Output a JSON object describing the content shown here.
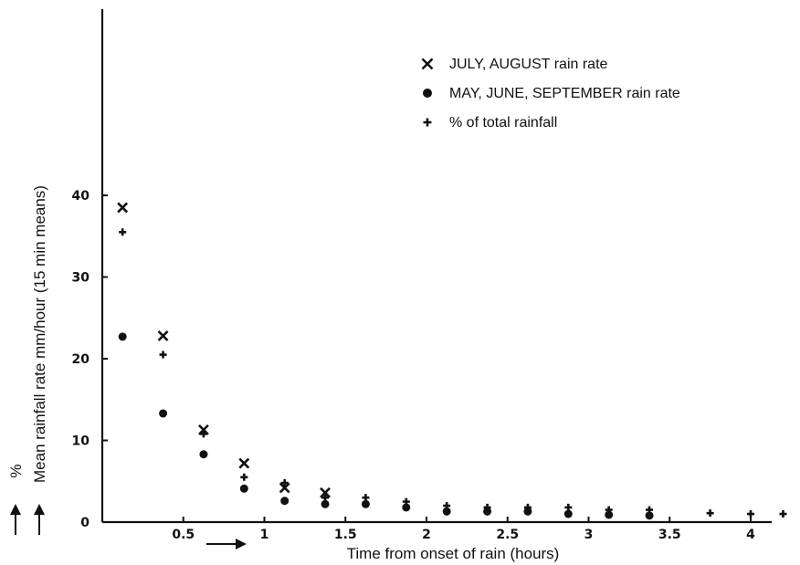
{
  "chart_data": {
    "type": "scatter",
    "title": "",
    "xlabel": "Time from onset of rain (hours)",
    "ylabel": "Mean rainfall rate mm/hour (15 min means)",
    "ylabel_secondary": "%",
    "xlim": [
      0,
      4.3
    ],
    "ylim": [
      0,
      45
    ],
    "xticks": [
      {
        "value": 0.5,
        "label": "0.5"
      },
      {
        "value": 1,
        "label": "1"
      },
      {
        "value": 1.5,
        "label": "1.5"
      },
      {
        "value": 2,
        "label": "2"
      },
      {
        "value": 2.5,
        "label": "2.5"
      },
      {
        "value": 3,
        "label": "3"
      },
      {
        "value": 3.5,
        "label": "3.5"
      },
      {
        "value": 4,
        "label": "4"
      }
    ],
    "yticks": [
      {
        "value": 0,
        "label": "0"
      },
      {
        "value": 10,
        "label": "10"
      },
      {
        "value": 20,
        "label": "20"
      },
      {
        "value": 30,
        "label": "30"
      },
      {
        "value": 40,
        "label": "40"
      }
    ],
    "legend_position": "top-right",
    "grid": false,
    "series": [
      {
        "name": "JULY, AUGUST rain rate",
        "marker": "x",
        "x": [
          0.125,
          0.375,
          0.625,
          0.875,
          1.125,
          1.375
        ],
        "y": [
          38.5,
          22.8,
          11.3,
          7.2,
          4.2,
          3.6
        ]
      },
      {
        "name": "MAY, JUNE, SEPTEMBER rain rate",
        "marker": "circle",
        "x": [
          0.125,
          0.375,
          0.625,
          0.875,
          1.125,
          1.375,
          1.625,
          1.875,
          2.125,
          2.375,
          2.625,
          2.875,
          3.125,
          3.375
        ],
        "y": [
          22.7,
          13.3,
          8.3,
          4.1,
          2.6,
          2.2,
          2.2,
          1.8,
          1.3,
          1.3,
          1.3,
          1.0,
          0.9,
          0.8
        ]
      },
      {
        "name": "% of total rainfall",
        "marker": "plus",
        "x": [
          0.125,
          0.375,
          0.625,
          0.875,
          1.125,
          1.375,
          1.625,
          1.875,
          2.125,
          2.375,
          2.625,
          2.875,
          3.125,
          3.375,
          3.75,
          4.0,
          4.2
        ],
        "y": [
          35.5,
          20.5,
          10.8,
          5.5,
          4.8,
          3.0,
          3.0,
          2.5,
          2.0,
          1.8,
          1.8,
          1.8,
          1.5,
          1.5,
          1.1,
          1.0,
          1.0
        ]
      }
    ]
  }
}
